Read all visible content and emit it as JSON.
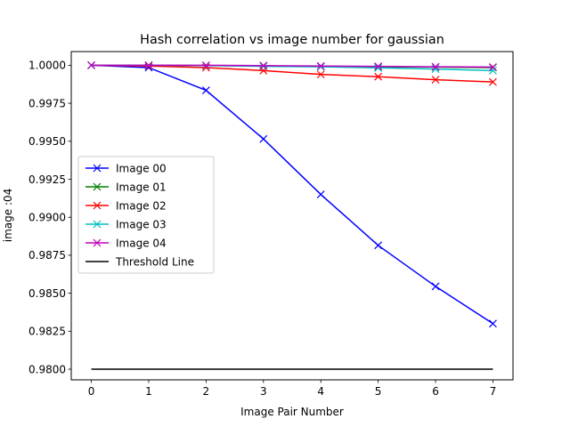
{
  "chart_data": {
    "type": "line",
    "title": "Hash correlation vs image number for gaussian",
    "xlabel": "Image Pair Number",
    "ylabel": "image :04",
    "xlim": [
      -0.35,
      7.35
    ],
    "ylim": [
      0.9793,
      1.0009
    ],
    "x": [
      0,
      1,
      2,
      3,
      4,
      5,
      6,
      7
    ],
    "xticks": [
      "0",
      "1",
      "2",
      "3",
      "4",
      "5",
      "6",
      "7"
    ],
    "yticks": [
      "0.9800",
      "0.9825",
      "0.9850",
      "0.9875",
      "0.9900",
      "0.9925",
      "0.9950",
      "0.9975",
      "1.0000"
    ],
    "ytick_values": [
      0.98,
      0.9825,
      0.985,
      0.9875,
      0.99,
      0.9925,
      0.995,
      0.9975,
      1.0
    ],
    "grid": false,
    "legend_position": "center-left",
    "series": [
      {
        "name": "Image 00",
        "color": "#0000ff",
        "marker": "x",
        "values": [
          1.0,
          0.99985,
          0.99835,
          0.99515,
          0.9915,
          0.98815,
          0.98545,
          0.983
        ]
      },
      {
        "name": "Image 01",
        "color": "#008000",
        "marker": "x",
        "values": [
          1.0,
          1.0,
          0.99998,
          0.99995,
          0.99993,
          0.9999,
          0.99988,
          0.99985
        ]
      },
      {
        "name": "Image 02",
        "color": "#ff0000",
        "marker": "x",
        "values": [
          1.0,
          0.99995,
          0.99985,
          0.99965,
          0.9994,
          0.99925,
          0.99905,
          0.9989
        ]
      },
      {
        "name": "Image 03",
        "color": "#00bfbf",
        "marker": "x",
        "values": [
          1.0,
          1.0,
          0.99998,
          0.99993,
          0.9999,
          0.99983,
          0.99975,
          0.99965
        ]
      },
      {
        "name": "Image 04",
        "color": "#bf00bf",
        "marker": "x",
        "values": [
          1.0,
          1.0,
          1.0,
          0.99998,
          0.99995,
          0.99993,
          0.9999,
          0.99988
        ]
      },
      {
        "name": "Threshold Line",
        "color": "#000000",
        "marker": "none",
        "values": [
          0.98,
          0.98,
          0.98,
          0.98,
          0.98,
          0.98,
          0.98,
          0.98
        ]
      }
    ]
  }
}
